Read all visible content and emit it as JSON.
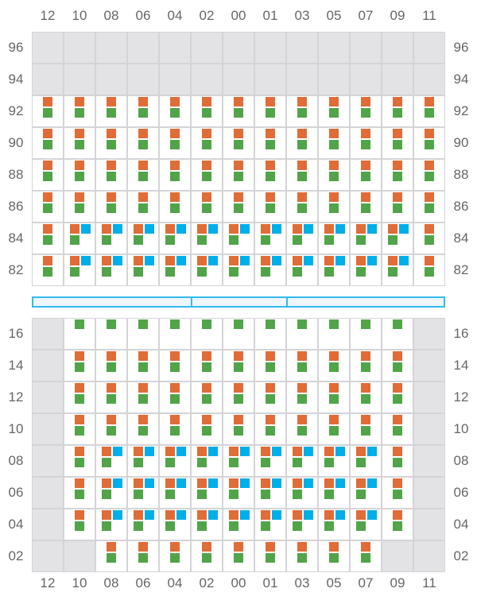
{
  "columns": [
    "12",
    "10",
    "08",
    "06",
    "04",
    "02",
    "00",
    "01",
    "03",
    "05",
    "07",
    "09",
    "11"
  ],
  "colors": {
    "orange": "#e06c37",
    "green": "#52a448",
    "blue": "#00aee8",
    "empty": "#e3e3e6",
    "border": "#d4d4d8",
    "bar": "#33bbee"
  },
  "legend_codes": {
    "x": "empty",
    "p": "orange+green",
    "t": "orange+blue+green",
    "s": "green only"
  },
  "top_rows": [
    {
      "label": "96",
      "cells": "xxxxxxxxxxxxx"
    },
    {
      "label": "94",
      "cells": "xxxxxxxxxxxxx"
    },
    {
      "label": "92",
      "cells": "ppppppppppppp"
    },
    {
      "label": "90",
      "cells": "ppppppppppppp"
    },
    {
      "label": "88",
      "cells": "ppppppppppppp"
    },
    {
      "label": "86",
      "cells": "ppppppppppppp"
    },
    {
      "label": "84",
      "cells": "ptttttttttttp"
    },
    {
      "label": "82",
      "cells": "ptttttttttttp"
    }
  ],
  "bottom_rows": [
    {
      "label": "16",
      "cells": "xsssssssssssx"
    },
    {
      "label": "14",
      "cells": "xpppppppppppx"
    },
    {
      "label": "12",
      "cells": "xpppppppppppx"
    },
    {
      "label": "10",
      "cells": "xpppppppppppx"
    },
    {
      "label": "08",
      "cells": "xptttttttttpx"
    },
    {
      "label": "06",
      "cells": "xptttttttttpx"
    },
    {
      "label": "04",
      "cells": "xptttttttttpx"
    },
    {
      "label": "02",
      "cells": "xxpppppppppxx"
    }
  ]
}
